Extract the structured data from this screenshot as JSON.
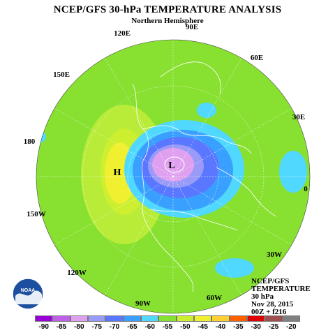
{
  "title": "NCEP/GFS 30-hPa TEMPERATURE ANALYSIS",
  "subtitle": "Northern Hemisphere",
  "longitude_labels": [
    "90E",
    "60E",
    "120E",
    "150E",
    "30E",
    "180",
    "0",
    "150W",
    "30W",
    "120W",
    "60W",
    "90W"
  ],
  "map_markers": [
    {
      "label": "H",
      "meaning": "warm high"
    },
    {
      "label": "L",
      "meaning": "cold low"
    }
  ],
  "info_block": [
    "NCEP/GFS",
    "TEMPERATURE",
    "30 hPa",
    "Nov 28, 2015",
    "00Z + f216"
  ],
  "logo": {
    "text": "NOAA"
  },
  "colorbar": {
    "labels": [
      "-90",
      "-85",
      "-80",
      "-75",
      "-70",
      "-65",
      "-60",
      "-55",
      "-50",
      "-45",
      "-40",
      "-35",
      "-30",
      "-25",
      "-20"
    ],
    "colors": [
      "#9a00d8",
      "#c060e8",
      "#e0a0f0",
      "#9a9af8",
      "#5a78ff",
      "#3aa0ff",
      "#50d8ff",
      "#88e030",
      "#ccef30",
      "#f0f030",
      "#ffd030",
      "#ff6000",
      "#e00000",
      "#a05050",
      "#808080"
    ]
  },
  "colors": {
    "background_field": "#88e030",
    "polar_vortex_core": "#e0a0f0",
    "warm_anomaly": "#f0f030"
  }
}
